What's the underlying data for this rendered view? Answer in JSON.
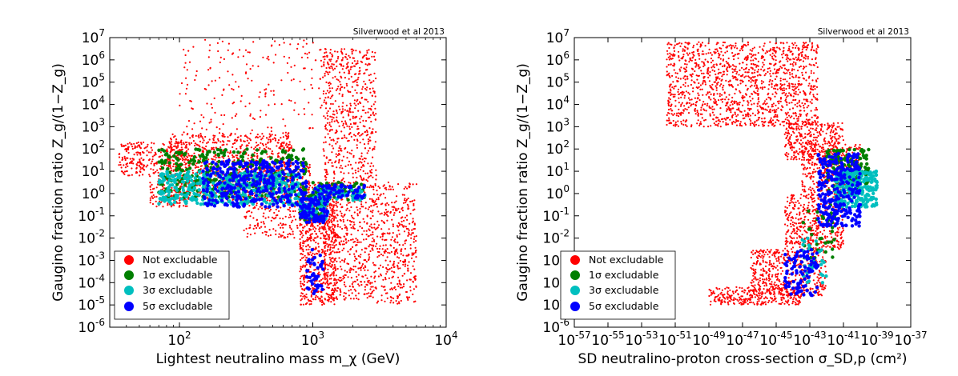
{
  "chart_data": [
    {
      "type": "scatter",
      "credit": "Silverwood et al 2013",
      "xlabel": "Lightest neutralino mass m_χ (GeV)",
      "ylabel": "Gaugino fraction ratio Z_g/(1−Z_g)",
      "xscale": "log",
      "yscale": "log",
      "xlim": [
        30,
        10000
      ],
      "ylim": [
        1e-06,
        10000000
      ],
      "x_ticks": [
        100,
        1000,
        10000
      ],
      "y_ticks": [
        1e-06,
        1e-05,
        0.0001,
        0.001,
        0.01,
        0.1,
        1,
        10,
        100,
        1000,
        10000,
        100000,
        1000000,
        10000000
      ],
      "legend_location": "lower-left",
      "series": [
        {
          "name": "Not excludable",
          "color": "#ff0000",
          "regions": [
            {
              "x": [
                35,
                60
              ],
              "log10_y": [
                0.8,
                2.3
              ],
              "n": 140
            },
            {
              "x": [
                60,
                120
              ],
              "log10_y": [
                -0.6,
                2.3
              ],
              "n": 260
            },
            {
              "x": [
                80,
                700
              ],
              "log10_y": [
                -0.3,
                2.7
              ],
              "n": 900
            },
            {
              "x": [
                300,
                1000
              ],
              "log10_y": [
                -2.0,
                1.5
              ],
              "n": 380
            },
            {
              "x": [
                800,
                1500
              ],
              "log10_y": [
                -5.0,
                0.5
              ],
              "n": 650
            },
            {
              "x": [
                1200,
                3000
              ],
              "log10_y": [
                -4.8,
                6.5
              ],
              "n": 1100
            },
            {
              "x": [
                3000,
                6000
              ],
              "log10_y": [
                -5.0,
                0.5
              ],
              "n": 380
            },
            {
              "x": [
                100,
                1200
              ],
              "log10_y": [
                2.7,
                6.9
              ],
              "n": 200
            }
          ]
        },
        {
          "name": "1σ excludable",
          "color": "#007f00",
          "regions": [
            {
              "x": [
                70,
                900
              ],
              "log10_y": [
                -0.2,
                2.0
              ],
              "n": 320
            },
            {
              "x": [
                800,
                1200
              ],
              "log10_y": [
                -1.2,
                0.2
              ],
              "n": 60
            },
            {
              "x": [
                1000,
                2500
              ],
              "log10_y": [
                -0.3,
                0.5
              ],
              "n": 60
            }
          ]
        },
        {
          "name": "3σ excludable",
          "color": "#00bfbf",
          "regions": [
            {
              "x": [
                70,
                800
              ],
              "log10_y": [
                -0.5,
                1.0
              ],
              "n": 430
            },
            {
              "x": [
                800,
                1300
              ],
              "log10_y": [
                -1.2,
                -0.2
              ],
              "n": 80
            },
            {
              "x": [
                1000,
                2500
              ],
              "log10_y": [
                -0.3,
                0.3
              ],
              "n": 60
            }
          ]
        },
        {
          "name": "5σ excludable",
          "color": "#0000ff",
          "regions": [
            {
              "x": [
                150,
                900
              ],
              "log10_y": [
                -0.6,
                1.5
              ],
              "n": 350
            },
            {
              "x": [
                800,
                1300
              ],
              "log10_y": [
                -1.3,
                -0.2
              ],
              "n": 90
            },
            {
              "x": [
                1000,
                2500
              ],
              "log10_y": [
                -0.2,
                0.4
              ],
              "n": 70
            },
            {
              "x": [
                900,
                1200
              ],
              "log10_y": [
                -4.6,
                -2.5
              ],
              "n": 40
            }
          ]
        }
      ]
    },
    {
      "type": "scatter",
      "credit": "Silverwood et al 2013",
      "xlabel": "SD neutralino-proton cross-section σ_SD,p (cm²)",
      "ylabel": "Gaugino fraction ratio Z_g/(1−Z_g)",
      "xscale": "log",
      "yscale": "log",
      "xlim": [
        1e-57,
        1e-37
      ],
      "ylim": [
        1e-06,
        10000000
      ],
      "x_ticks": [
        1e-57,
        1e-55,
        1e-53,
        1e-51,
        1e-49,
        1e-47,
        1e-45,
        1e-43,
        1e-41,
        1e-39,
        1e-37
      ],
      "y_ticks": [
        1e-06,
        1e-05,
        0.0001,
        0.001,
        0.01,
        0.1,
        1,
        10,
        100,
        1000,
        10000,
        100000,
        1000000,
        10000000
      ],
      "legend_location": "lower-left",
      "series": [
        {
          "name": "Not excludable",
          "color": "#ff0000",
          "regions": [
            {
              "log10_x": [
                -51.5,
                -42.5
              ],
              "log10_y": [
                3.0,
                6.8
              ],
              "n": 1400
            },
            {
              "log10_x": [
                -44.5,
                -41.0
              ],
              "log10_y": [
                1.5,
                3.2
              ],
              "n": 350
            },
            {
              "log10_x": [
                -43.5,
                -40.0
              ],
              "log10_y": [
                0.0,
                2.2
              ],
              "n": 350
            },
            {
              "log10_x": [
                -44.5,
                -41.0
              ],
              "log10_y": [
                -2.5,
                0.0
              ],
              "n": 450
            },
            {
              "log10_x": [
                -46.5,
                -42.0
              ],
              "log10_y": [
                -4.6,
                -2.5
              ],
              "n": 500
            },
            {
              "log10_x": [
                -49.0,
                -43.5
              ],
              "log10_y": [
                -5.0,
                -4.2
              ],
              "n": 300
            }
          ]
        },
        {
          "name": "1σ excludable",
          "color": "#007f00",
          "regions": [
            {
              "log10_x": [
                -42.0,
                -39.5
              ],
              "log10_y": [
                0.0,
                2.0
              ],
              "n": 160
            },
            {
              "log10_x": [
                -43.5,
                -41.5
              ],
              "log10_y": [
                -3.0,
                -0.5
              ],
              "n": 40
            }
          ]
        },
        {
          "name": "3σ excludable",
          "color": "#00bfbf",
          "regions": [
            {
              "log10_x": [
                -41.5,
                -39.0
              ],
              "log10_y": [
                -0.6,
                1.0
              ],
              "n": 260
            },
            {
              "log10_x": [
                -43.5,
                -42.0
              ],
              "log10_y": [
                -4.0,
                -2.0
              ],
              "n": 30
            }
          ]
        },
        {
          "name": "5σ excludable",
          "color": "#0000ff",
          "regions": [
            {
              "log10_x": [
                -42.5,
                -40.0
              ],
              "log10_y": [
                -1.5,
                1.8
              ],
              "n": 280
            },
            {
              "log10_x": [
                -44.5,
                -42.5
              ],
              "log10_y": [
                -4.6,
                -2.5
              ],
              "n": 90
            }
          ]
        }
      ]
    }
  ],
  "legend_labels": [
    "Not excludable",
    "1σ excludable",
    "3σ excludable",
    "5σ excludable"
  ]
}
